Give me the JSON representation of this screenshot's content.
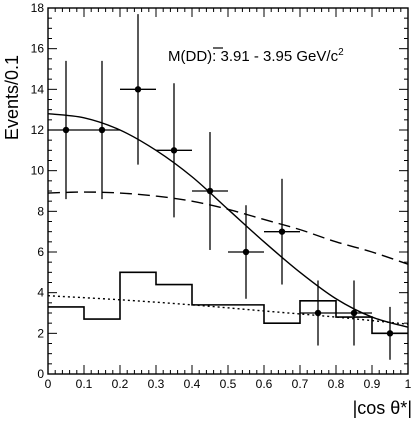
{
  "chart_data": {
    "type": "scatter",
    "ylabel": "Events/0.1",
    "xlabel": "|cos θ*|",
    "annotation": {
      "prefix": "M(D",
      "dbar": "D",
      "suffix": "): 3.91 - 3.95 GeV/c",
      "sup": "2"
    },
    "xlim": [
      0,
      1
    ],
    "ylim": [
      0,
      18
    ],
    "xticks": [
      0,
      0.1,
      0.2,
      0.3,
      0.4,
      0.5,
      0.6,
      0.7,
      0.8,
      0.9,
      1
    ],
    "xtick_labels": [
      "0",
      "0.1",
      "0.2",
      "0.3",
      "0.4",
      "0.5",
      "0.6",
      "0.7",
      "0.8",
      "0.9",
      "1"
    ],
    "yticks": [
      0,
      2,
      4,
      6,
      8,
      10,
      12,
      14,
      16,
      18
    ],
    "ytick_labels": [
      "0",
      "2",
      "4",
      "6",
      "8",
      "10",
      "12",
      "14",
      "16",
      "18"
    ],
    "grid": false,
    "points": {
      "x": [
        0.05,
        0.15,
        0.25,
        0.35,
        0.45,
        0.55,
        0.65,
        0.75,
        0.85,
        0.95
      ],
      "y": [
        12,
        12,
        14,
        11,
        9,
        6,
        7,
        3,
        3,
        2
      ],
      "yerr_low": [
        3.4,
        3.4,
        3.7,
        3.3,
        2.9,
        2.3,
        2.6,
        1.6,
        1.6,
        1.3
      ],
      "yerr_high": [
        3.4,
        3.4,
        3.7,
        3.3,
        2.9,
        2.3,
        2.6,
        1.6,
        1.6,
        1.3
      ],
      "xerr": 0.05
    },
    "histogram": {
      "bin_edges": [
        0,
        0.1,
        0.2,
        0.3,
        0.4,
        0.5,
        0.6,
        0.7,
        0.8,
        0.9,
        1.0
      ],
      "values": [
        3.3,
        2.7,
        5.0,
        4.4,
        3.4,
        3.4,
        2.5,
        3.6,
        2.8,
        2.0
      ]
    },
    "curves": {
      "solid": {
        "x": [
          0,
          0.1,
          0.2,
          0.3,
          0.4,
          0.5,
          0.6,
          0.7,
          0.8,
          0.9,
          1.0
        ],
        "y": [
          12.8,
          12.6,
          12.0,
          11.0,
          9.7,
          8.1,
          6.5,
          5.0,
          3.7,
          2.8,
          2.3
        ]
      },
      "dashed": {
        "x": [
          0,
          0.1,
          0.2,
          0.3,
          0.4,
          0.5,
          0.6,
          0.7,
          0.8,
          0.9,
          1.0
        ],
        "y": [
          8.9,
          8.95,
          8.9,
          8.75,
          8.5,
          8.1,
          7.6,
          7.1,
          6.5,
          6.0,
          5.4
        ]
      },
      "dotted": {
        "x": [
          0,
          0.2,
          0.4,
          0.6,
          0.8,
          1.0
        ],
        "y": [
          3.85,
          3.65,
          3.4,
          3.1,
          2.8,
          2.45
        ]
      }
    }
  }
}
